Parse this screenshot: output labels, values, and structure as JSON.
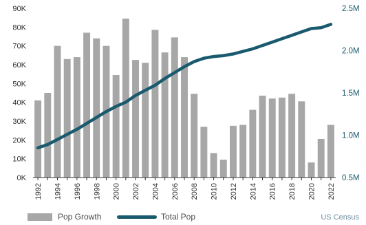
{
  "chart_data": {
    "type": "bar+line",
    "x": [
      "1992",
      "1993",
      "1994",
      "1995",
      "1996",
      "1997",
      "1998",
      "1999",
      "2000",
      "2001",
      "2002",
      "2003",
      "2004",
      "2005",
      "2006",
      "2007",
      "2008",
      "2009",
      "2010",
      "2011",
      "2012",
      "2013",
      "2014",
      "2015",
      "2016",
      "2017",
      "2018",
      "2019",
      "2020",
      "2021",
      "2022"
    ],
    "x_tick_labels": [
      "1992",
      "1994",
      "1996",
      "1998",
      "2000",
      "2002",
      "2004",
      "2006",
      "2008",
      "2010",
      "2012",
      "2014",
      "2016",
      "2018",
      "2020",
      "2022"
    ],
    "series": [
      {
        "name": "Pop Growth",
        "kind": "bar",
        "axis": "left",
        "color": "#a7a7a7",
        "values": [
          41000,
          45000,
          70000,
          63000,
          64000,
          77000,
          74000,
          70000,
          54500,
          84500,
          62500,
          61000,
          78500,
          66500,
          74500,
          64000,
          44500,
          27000,
          13000,
          9500,
          27500,
          28000,
          36000,
          43500,
          42000,
          42500,
          44500,
          40500,
          8000,
          20500,
          28000
        ]
      },
      {
        "name": "Total Pop",
        "kind": "line",
        "axis": "right",
        "color": "#1a5a6e",
        "values": [
          0.85,
          0.89,
          0.95,
          1.01,
          1.07,
          1.14,
          1.21,
          1.28,
          1.34,
          1.39,
          1.47,
          1.53,
          1.59,
          1.67,
          1.74,
          1.81,
          1.87,
          1.91,
          1.93,
          1.94,
          1.96,
          1.99,
          2.02,
          2.06,
          2.1,
          2.14,
          2.18,
          2.22,
          2.26,
          2.27,
          2.31
        ]
      }
    ],
    "left_axis": {
      "ylim": [
        0,
        90000
      ],
      "ticks": [
        "0K",
        "10K",
        "20K",
        "30K",
        "40K",
        "50K",
        "60K",
        "70K",
        "80K",
        "90K"
      ],
      "color": "#2f2f2f"
    },
    "right_axis": {
      "ylim": [
        0.5,
        2.5
      ],
      "ticks": [
        "0.5M",
        "1.0M",
        "1.5M",
        "2.0M",
        "2.5M"
      ],
      "color": "#1a5a6e"
    },
    "grid": false,
    "legend_position": "bottom-left"
  },
  "legend": {
    "bar_label": "Pop Growth",
    "line_label": "Total Pop"
  },
  "source": "US Census"
}
